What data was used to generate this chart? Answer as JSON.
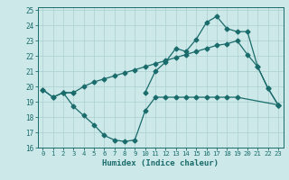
{
  "xlabel": "Humidex (Indice chaleur)",
  "bg_color": "#cce8e8",
  "line_color": "#1a6b6b",
  "grid_color": "#aacfcf",
  "xlim": [
    -0.5,
    23.5
  ],
  "ylim": [
    16,
    25.2
  ],
  "yticks": [
    16,
    17,
    18,
    19,
    20,
    21,
    22,
    23,
    24,
    25
  ],
  "xticks": [
    0,
    1,
    2,
    3,
    4,
    5,
    6,
    7,
    8,
    9,
    10,
    11,
    12,
    13,
    14,
    15,
    16,
    17,
    18,
    19,
    20,
    21,
    22,
    23
  ],
  "line1_x": [
    0,
    1,
    2,
    3,
    10,
    11,
    12,
    13,
    14,
    15,
    16,
    17,
    18,
    19,
    20,
    21,
    22,
    23
  ],
  "line1_y": [
    19.8,
    19.3,
    19.6,
    19.6,
    19.6,
    21.0,
    21.6,
    22.5,
    22.3,
    23.1,
    24.2,
    24.6,
    23.8,
    23.6,
    23.6,
    21.3,
    19.9,
    18.8
  ],
  "line2_x": [
    0,
    1,
    2,
    3,
    4,
    5,
    6,
    7,
    8,
    9,
    10,
    11,
    12,
    13,
    14,
    15,
    16,
    17,
    18,
    19,
    20,
    21,
    22,
    23
  ],
  "line2_y": [
    19.8,
    19.3,
    19.6,
    19.6,
    20.0,
    20.3,
    20.5,
    20.7,
    20.9,
    21.1,
    21.3,
    21.5,
    21.7,
    21.9,
    22.1,
    22.3,
    22.5,
    22.7,
    22.8,
    23.0,
    22.1,
    21.3,
    19.9,
    18.8
  ],
  "line3_x": [
    2,
    3,
    4,
    5,
    6,
    7,
    8,
    9,
    10,
    11,
    12,
    13,
    14,
    15,
    16,
    17,
    18,
    19,
    23
  ],
  "line3_y": [
    19.6,
    18.7,
    18.1,
    17.5,
    16.8,
    16.5,
    16.4,
    16.5,
    18.4,
    19.3,
    19.3,
    19.3,
    19.3,
    19.3,
    19.3,
    19.3,
    19.3,
    19.3,
    18.8
  ],
  "markersize": 2.5,
  "linewidth": 0.9
}
